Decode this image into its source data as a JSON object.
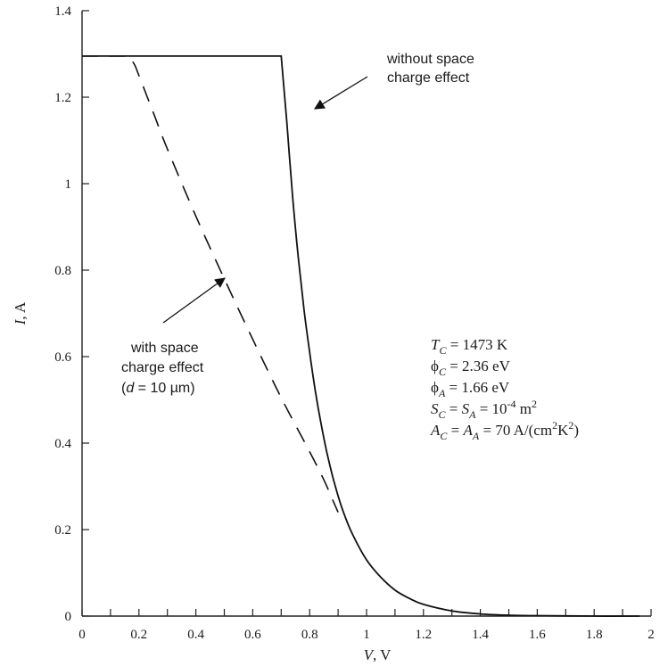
{
  "chart_data": {
    "type": "line",
    "xlabel": {
      "var": "V",
      "unit": ", V"
    },
    "ylabel": {
      "var": "I",
      "unit": ", A"
    },
    "xlim": [
      0,
      2
    ],
    "ylim": [
      0,
      1.4
    ],
    "x_ticks": [
      "0",
      "0.2",
      "0.4",
      "0.6",
      "0.8",
      "1",
      "1.2",
      "1.4",
      "1.6",
      "1.8",
      "2"
    ],
    "y_ticks": [
      "0",
      "0.2",
      "0.4",
      "0.6",
      "0.8",
      "1",
      "1.2",
      "1.4"
    ],
    "x_minor_step": 0.1,
    "grid": false,
    "series": [
      {
        "style": "solid",
        "x": [
          0,
          0.7,
          0.72,
          0.74,
          0.76,
          0.78,
          0.8,
          0.82,
          0.84,
          0.86,
          0.88,
          0.9,
          0.92,
          0.95,
          1.0,
          1.05,
          1.1,
          1.15,
          1.2,
          1.3,
          1.4,
          1.5,
          1.6,
          1.8,
          1.96
        ],
        "y": [
          1.295,
          1.295,
          1.14,
          0.97,
          0.83,
          0.71,
          0.61,
          0.52,
          0.445,
          0.38,
          0.325,
          0.278,
          0.238,
          0.19,
          0.13,
          0.09,
          0.06,
          0.041,
          0.027,
          0.012,
          0.005,
          0.002,
          0.001,
          0.0,
          0.0
        ]
      },
      {
        "style": "dashed",
        "x": [
          0.0,
          0.15,
          0.18,
          0.2,
          0.25,
          0.3,
          0.4,
          0.5,
          0.6,
          0.7,
          0.8,
          0.85,
          0.88,
          0.9
        ],
        "y": [
          1.295,
          1.295,
          1.28,
          1.25,
          1.165,
          1.08,
          0.925,
          0.78,
          0.64,
          0.505,
          0.38,
          0.315,
          0.27,
          0.24
        ]
      }
    ],
    "annotations": [
      {
        "name": "without",
        "lines": [
          "without space",
          "charge effect"
        ]
      },
      {
        "name": "with",
        "lines": [
          "with space",
          "charge effect",
          "(",
          "d",
          " = 10 µm)"
        ]
      }
    ],
    "parameters": [
      {
        "parts": [
          {
            "t": "T",
            "i": true
          },
          {
            "t": "C",
            "i": true,
            "sub": true
          },
          {
            "t": " = 1473 K"
          }
        ]
      },
      {
        "parts": [
          {
            "t": "ϕ"
          },
          {
            "t": "C",
            "i": true,
            "sub": true
          },
          {
            "t": " = 2.36 eV"
          }
        ]
      },
      {
        "parts": [
          {
            "t": "ϕ"
          },
          {
            "t": "A",
            "i": true,
            "sub": true
          },
          {
            "t": " = 1.66 eV"
          }
        ]
      },
      {
        "parts": [
          {
            "t": "S",
            "i": true
          },
          {
            "t": "C",
            "i": true,
            "sub": true
          },
          {
            "t": " = "
          },
          {
            "t": "S",
            "i": true
          },
          {
            "t": "A",
            "i": true,
            "sub": true
          },
          {
            "t": " = 10"
          },
          {
            "t": "-4",
            "sup": true
          },
          {
            "t": " m"
          },
          {
            "t": "2",
            "sup": true
          }
        ]
      },
      {
        "parts": [
          {
            "t": "A",
            "i": true
          },
          {
            "t": "C",
            "i": true,
            "sub": true
          },
          {
            "t": " = "
          },
          {
            "t": "A",
            "i": true
          },
          {
            "t": "A",
            "i": true,
            "sub": true
          },
          {
            "t": " = 70 A/(cm"
          },
          {
            "t": "2",
            "sup": true
          },
          {
            "t": "K"
          },
          {
            "t": "2",
            "sup": true
          },
          {
            "t": ")"
          }
        ]
      }
    ]
  }
}
